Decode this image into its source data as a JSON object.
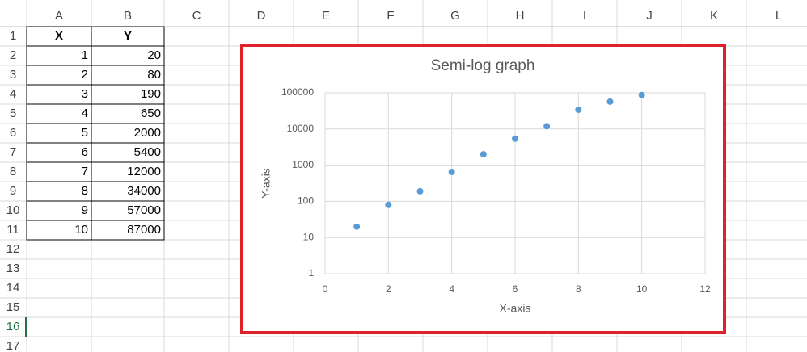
{
  "sheet": {
    "columns": [
      "A",
      "B",
      "C",
      "D",
      "E",
      "F",
      "G",
      "H",
      "I",
      "J",
      "K",
      "L"
    ],
    "rows": [
      1,
      2,
      3,
      4,
      5,
      6,
      7,
      8,
      9,
      10,
      11,
      12,
      13,
      14,
      15,
      16,
      17
    ],
    "selected_row": 16,
    "table": {
      "header": [
        "X",
        "Y"
      ],
      "rows": [
        [
          1,
          20
        ],
        [
          2,
          80
        ],
        [
          3,
          190
        ],
        [
          4,
          650
        ],
        [
          5,
          2000
        ],
        [
          6,
          5400
        ],
        [
          7,
          12000
        ],
        [
          8,
          34000
        ],
        [
          9,
          57000
        ],
        [
          10,
          87000
        ]
      ]
    }
  },
  "chart_data": {
    "type": "scatter",
    "title": "Semi-log graph",
    "x_label": "X-axis",
    "y_label": "Y-axis",
    "x": [
      1,
      2,
      3,
      4,
      5,
      6,
      7,
      8,
      9,
      10
    ],
    "values": [
      20,
      80,
      190,
      650,
      2000,
      5400,
      12000,
      34000,
      57000,
      87000
    ],
    "color": "#5b9bd5",
    "log_scale": "y",
    "grid": true,
    "xlim": [
      0,
      12
    ],
    "xticks": [
      0,
      2,
      4,
      6,
      8,
      10,
      12
    ],
    "ylim": [
      1,
      100000
    ],
    "yticks": [
      1,
      10,
      100,
      1000,
      10000,
      100000
    ]
  }
}
